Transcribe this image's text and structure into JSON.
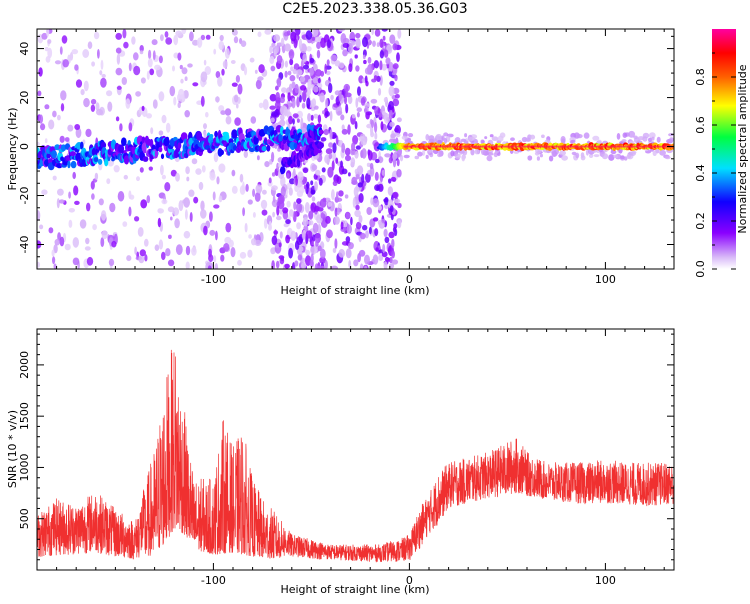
{
  "title": "C2E5.2023.338.05.36.G03",
  "colors": {
    "snr_line": "#f03030",
    "frame": "#000000",
    "spectrum_faint": "#d7b8f5",
    "spectrum_mid": "#7a1ce8",
    "track_peak": "#ff1060"
  },
  "chart_data": [
    {
      "type": "heatmap",
      "name": "spectrogram",
      "xlabel": "Height of straight line (km)",
      "ylabel": "Frequency (Hz)",
      "xlim": [
        -190,
        135
      ],
      "ylim": [
        -50,
        48
      ],
      "xticks": [
        -100,
        0,
        100
      ],
      "yticks": [
        -40,
        -20,
        0,
        20,
        40
      ],
      "colorbar": {
        "label": "Normalized spectral amplitude",
        "range": [
          0.0,
          1.0
        ],
        "ticks": [
          0.0,
          0.2,
          0.4,
          0.6,
          0.8
        ],
        "colormap": "rainbow (white-violet-blue-cyan-green-yellow-red-magenta)"
      },
      "features": {
        "scatter_regions_km": [
          [
            -190,
            -45
          ],
          [
            -70,
            -5
          ]
        ],
        "tracks": [
          {
            "x_start": -190,
            "x_end": -45,
            "freq_start": -5,
            "freq_end": 5,
            "amplitude": 0.3
          },
          {
            "x_start": -65,
            "x_end": -45,
            "freq_start": -8,
            "freq_end": 0,
            "amplitude": 0.15
          },
          {
            "x_start": -15,
            "x_end": 135,
            "freq_start": 0,
            "freq_end": 0,
            "amplitude": 0.9
          }
        ]
      }
    },
    {
      "type": "line",
      "name": "snr",
      "xlabel": "Height of straight line (km)",
      "ylabel": "SNR (10 * v/v)",
      "xlim": [
        -190,
        135
      ],
      "ylim": [
        0,
        2350
      ],
      "xticks": [
        -100,
        0,
        100
      ],
      "yticks": [
        500,
        1000,
        1500,
        2000
      ],
      "x_step_km": 0.1,
      "envelope": {
        "x": [
          -190,
          -180,
          -170,
          -160,
          -150,
          -140,
          -130,
          -125,
          -120,
          -115,
          -110,
          -100,
          -95,
          -90,
          -85,
          -80,
          -75,
          -70,
          -60,
          -50,
          -40,
          -30,
          -20,
          -15,
          -10,
          -5,
          0,
          5,
          10,
          15,
          20,
          30,
          40,
          50,
          55,
          60,
          70,
          80,
          90,
          100,
          110,
          120,
          135
        ],
        "base": [
          120,
          140,
          150,
          170,
          120,
          100,
          150,
          250,
          400,
          350,
          200,
          150,
          160,
          170,
          150,
          130,
          120,
          110,
          130,
          110,
          100,
          90,
          80,
          80,
          80,
          80,
          90,
          200,
          350,
          450,
          600,
          650,
          700,
          720,
          750,
          720,
          680,
          660,
          640,
          650,
          640,
          620,
          640
        ],
        "peak": [
          550,
          700,
          650,
          780,
          600,
          480,
          1200,
          1800,
          2300,
          1600,
          900,
          900,
          1500,
          1200,
          1400,
          900,
          700,
          600,
          350,
          300,
          250,
          250,
          250,
          250,
          280,
          300,
          350,
          600,
          750,
          950,
          1050,
          1100,
          1150,
          1250,
          1300,
          1150,
          1050,
          1050,
          1050,
          1080,
          1050,
          1050,
          1050
        ]
      }
    }
  ]
}
